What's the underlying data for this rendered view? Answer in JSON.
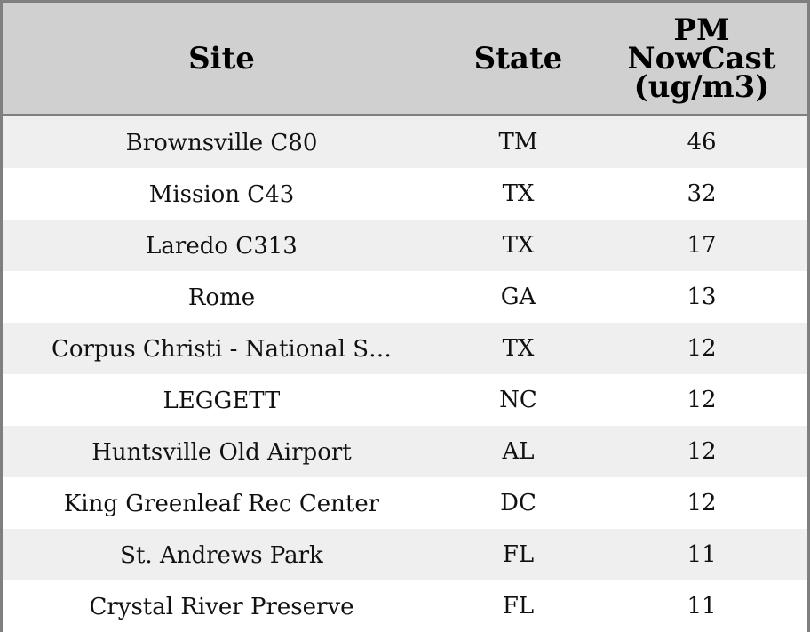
{
  "chart_data": {
    "type": "table",
    "columns": [
      "Site",
      "State",
      [
        "PM",
        "NowCast",
        "(ug/m3)"
      ]
    ],
    "rows": [
      {
        "site": "Brownsville C80",
        "state": "TM",
        "pm": 46
      },
      {
        "site": "Mission C43",
        "state": "TX",
        "pm": 32
      },
      {
        "site": "Laredo C313",
        "state": "TX",
        "pm": 17
      },
      {
        "site": "Rome",
        "state": "GA",
        "pm": 13
      },
      {
        "site": "Corpus Christi - National S…",
        "state": "TX",
        "pm": 12
      },
      {
        "site": "LEGGETT",
        "state": "NC",
        "pm": 12
      },
      {
        "site": "Huntsville Old Airport",
        "state": "AL",
        "pm": 12
      },
      {
        "site": "King Greenleaf Rec Center",
        "state": "DC",
        "pm": 12
      },
      {
        "site": "St. Andrews Park",
        "state": "FL",
        "pm": 11
      },
      {
        "site": "Crystal River Preserve",
        "state": "FL",
        "pm": 11
      }
    ]
  },
  "colors": {
    "header_bg": "#d0d0d0",
    "row_odd_bg": "#efefef",
    "row_even_bg": "#ffffff",
    "border": "#7f7f7f"
  }
}
